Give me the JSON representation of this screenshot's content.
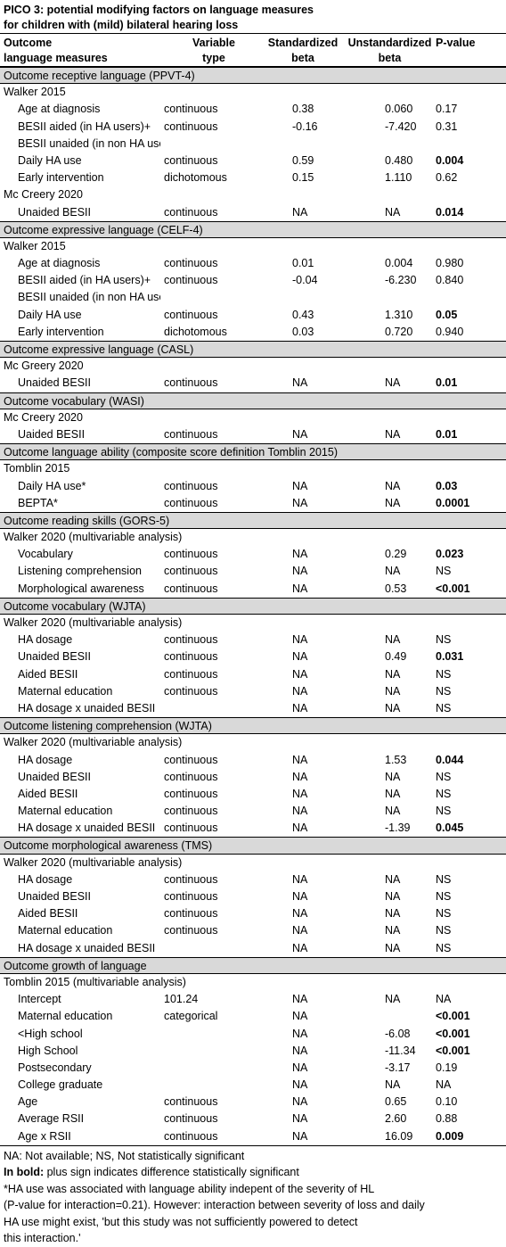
{
  "title": {
    "line1": "PICO 3: potential modifying factors on language measures",
    "line2": "for children with (mild) bilateral hearing loss"
  },
  "header": {
    "outcome_line1": "Outcome",
    "outcome_line2": "language measures",
    "type_line1": "Variable",
    "type_line2": "type",
    "std_line1": "Standardized",
    "std_line2": "beta",
    "uns_line1": "Unstandardized",
    "uns_line2": "beta",
    "p": "P-value"
  },
  "rows": [
    {
      "kind": "section",
      "text": "Outcome receptive language (PPVT-4)"
    },
    {
      "kind": "study",
      "text": "Walker 2015"
    },
    {
      "kind": "data",
      "factor": "Age at diagnosis",
      "type": "continuous",
      "std": "0.38",
      "uns": "0.060",
      "p": "0.17",
      "bold": false
    },
    {
      "kind": "data",
      "factor": "BESII aided (in HA users)+",
      "type": "continuous",
      "std": "-0.16",
      "uns": "-7.420",
      "p": "0.31",
      "bold": false
    },
    {
      "kind": "data",
      "factor": "BESII unaided (in non HA users)",
      "type": "",
      "std": "",
      "uns": "",
      "p": "",
      "bold": false
    },
    {
      "kind": "data",
      "factor": "Daily HA use",
      "type": "continuous",
      "std": "0.59",
      "uns": "0.480",
      "p": "0.004",
      "bold": true
    },
    {
      "kind": "data",
      "factor": "Early intervention",
      "type": "dichotomous",
      "std": "0.15",
      "uns": "1.110",
      "p": "0.62",
      "bold": false
    },
    {
      "kind": "study",
      "text": "Mc Creery 2020"
    },
    {
      "kind": "data",
      "factor": "Unaided BESII",
      "type": "continuous",
      "std": "NA",
      "uns": "NA",
      "p": "0.014",
      "bold": true
    },
    {
      "kind": "section",
      "text": "Outcome expressive language (CELF-4)"
    },
    {
      "kind": "study",
      "text": "Walker 2015"
    },
    {
      "kind": "data",
      "factor": "Age at diagnosis",
      "type": "continuous",
      "std": "0.01",
      "uns": "0.004",
      "p": "0.980",
      "bold": false
    },
    {
      "kind": "data",
      "factor": "BESII aided (in HA users)+",
      "type": "continuous",
      "std": "-0.04",
      "uns": "-6.230",
      "p": "0.840",
      "bold": false
    },
    {
      "kind": "data",
      "factor": "BESII unaided (in non HA users)",
      "type": "",
      "std": "",
      "uns": "",
      "p": "",
      "bold": false
    },
    {
      "kind": "data",
      "factor": "Daily HA use",
      "type": "continuous",
      "std": "0.43",
      "uns": "1.310",
      "p": "0.05",
      "bold": true
    },
    {
      "kind": "data",
      "factor": "Early intervention",
      "type": "dichotomous",
      "std": "0.03",
      "uns": "0.720",
      "p": "0.940",
      "bold": false
    },
    {
      "kind": "section",
      "text": "Outcome expressive language (CASL)"
    },
    {
      "kind": "study",
      "text": "Mc Greery 2020"
    },
    {
      "kind": "data",
      "factor": "Unaided BESII",
      "type": "continuous",
      "std": "NA",
      "uns": "NA",
      "p": "0.01",
      "bold": true
    },
    {
      "kind": "section",
      "text": "Outcome vocabulary  (WASI)"
    },
    {
      "kind": "study",
      "text": "Mc Creery 2020"
    },
    {
      "kind": "data",
      "factor": "Uaided BESII",
      "type": "continuous",
      "std": "NA",
      "uns": "NA",
      "p": "0.01",
      "bold": true
    },
    {
      "kind": "section",
      "text": "Outcome language ability (composite score definition Tomblin 2015)"
    },
    {
      "kind": "study",
      "text": "Tomblin 2015"
    },
    {
      "kind": "data",
      "factor": "Daily HA use*",
      "type": "continuous",
      "std": "NA",
      "uns": "NA",
      "p": "0.03",
      "bold": true
    },
    {
      "kind": "data",
      "factor": "BEPTA*",
      "type": "continuous",
      "std": "NA",
      "uns": "NA",
      "p": "0.0001",
      "bold": true
    },
    {
      "kind": "section",
      "text": "Outcome reading skills (GORS-5)"
    },
    {
      "kind": "study",
      "text": "Walker 2020 (multivariable analysis)"
    },
    {
      "kind": "data",
      "factor": "Vocabulary",
      "type": "continuous",
      "std": "NA",
      "uns": "0.29",
      "p": "0.023",
      "bold": true
    },
    {
      "kind": "data",
      "factor": "Listening comprehension",
      "type": "continuous",
      "std": "NA",
      "uns": "NA",
      "p": "NS",
      "bold": false
    },
    {
      "kind": "data",
      "factor": "Morphological awareness",
      "type": "continuous",
      "std": "NA",
      "uns": "0.53",
      "p": "<0.001",
      "bold": true
    },
    {
      "kind": "section",
      "text": "Outcome vocabulary  (WJTA)"
    },
    {
      "kind": "study",
      "text": "Walker 2020 (multivariable analysis)"
    },
    {
      "kind": "data",
      "factor": "HA dosage",
      "type": "continuous",
      "std": "NA",
      "uns": "NA",
      "p": "NS",
      "bold": false
    },
    {
      "kind": "data",
      "factor": "Unaided BESII",
      "type": "continuous",
      "std": "NA",
      "uns": "0.49",
      "p": "0.031",
      "bold": true
    },
    {
      "kind": "data",
      "factor": "Aided BESII",
      "type": "continuous",
      "std": "NA",
      "uns": "NA",
      "p": "NS",
      "bold": false
    },
    {
      "kind": "data",
      "factor": "Maternal education",
      "type": "continuous",
      "std": "NA",
      "uns": "NA",
      "p": "NS",
      "bold": false
    },
    {
      "kind": "data",
      "factor": "HA dosage x unaided BESII",
      "type": "",
      "std": "NA",
      "uns": "NA",
      "p": "NS",
      "bold": false
    },
    {
      "kind": "section",
      "text": "Outcome listening comprehension  (WJTA)"
    },
    {
      "kind": "study",
      "text": "Walker 2020 (multivariable analysis)"
    },
    {
      "kind": "data",
      "factor": "HA dosage",
      "type": "continuous",
      "std": "NA",
      "uns": "1.53",
      "p": "0.044",
      "bold": true
    },
    {
      "kind": "data",
      "factor": "Unaided BESII",
      "type": "continuous",
      "std": "NA",
      "uns": "NA",
      "p": "NS",
      "bold": false
    },
    {
      "kind": "data",
      "factor": "Aided BESII",
      "type": "continuous",
      "std": "NA",
      "uns": "NA",
      "p": "NS",
      "bold": false
    },
    {
      "kind": "data",
      "factor": "Maternal education",
      "type": "continuous",
      "std": "NA",
      "uns": "NA",
      "p": "NS",
      "bold": false
    },
    {
      "kind": "data",
      "factor": "HA dosage x unaided BESII",
      "type": "continuous",
      "std": "NA",
      "uns": "-1.39",
      "p": "0.045",
      "bold": true
    },
    {
      "kind": "section",
      "text": "Outcome morphological awareness (TMS)"
    },
    {
      "kind": "study",
      "text": "Walker 2020 (multivariable analysis)"
    },
    {
      "kind": "data",
      "factor": "HA dosage",
      "type": "continuous",
      "std": "NA",
      "uns": "NA",
      "p": "NS",
      "bold": false
    },
    {
      "kind": "data",
      "factor": "Unaided BESII",
      "type": "continuous",
      "std": "NA",
      "uns": "NA",
      "p": "NS",
      "bold": false
    },
    {
      "kind": "data",
      "factor": "Aided BESII",
      "type": "continuous",
      "std": "NA",
      "uns": "NA",
      "p": "NS",
      "bold": false
    },
    {
      "kind": "data",
      "factor": "Maternal education",
      "type": "continuous",
      "std": "NA",
      "uns": "NA",
      "p": "NS",
      "bold": false
    },
    {
      "kind": "data",
      "factor": "HA dosage x unaided BESII",
      "type": "",
      "std": "NA",
      "uns": "NA",
      "p": "NS",
      "bold": false
    },
    {
      "kind": "section",
      "text": "Outcome growth of language"
    },
    {
      "kind": "study",
      "text": "Tomblin 2015 (multivariable analysis)"
    },
    {
      "kind": "data",
      "factor": "Intercept",
      "type": "101.24",
      "std": "NA",
      "uns": "NA",
      "p": "NA",
      "bold": false
    },
    {
      "kind": "data",
      "factor": "Maternal education",
      "type": "categorical",
      "std": "NA",
      "uns": "",
      "p": "<0.001",
      "bold": true
    },
    {
      "kind": "data",
      "factor": "<High school",
      "type": "",
      "std": "NA",
      "uns": "-6.08",
      "p": "<0.001",
      "bold": true
    },
    {
      "kind": "data",
      "factor": "High School",
      "type": "",
      "std": "NA",
      "uns": "-11.34",
      "p": "<0.001",
      "bold": true
    },
    {
      "kind": "data",
      "factor": "Postsecondary",
      "type": "",
      "std": "NA",
      "uns": "-3.17",
      "p": "0.19",
      "bold": false
    },
    {
      "kind": "data",
      "factor": "College graduate",
      "type": "",
      "std": "NA",
      "uns": "NA",
      "p": "NA",
      "bold": false
    },
    {
      "kind": "data",
      "factor": "Age",
      "type": "continuous",
      "std": "NA",
      "uns": "0.65",
      "p": "0.10",
      "bold": false
    },
    {
      "kind": "data",
      "factor": "Average RSII",
      "type": "continuous",
      "std": "NA",
      "uns": "2.60",
      "p": "0.88",
      "bold": false
    },
    {
      "kind": "data",
      "factor": "Age x RSII",
      "type": "continuous",
      "std": "NA",
      "uns": "16.09",
      "p": "0.009",
      "bold": true
    }
  ],
  "footer": {
    "line1": "NA: Not available; NS, Not statistically significant",
    "line2_bold": "In bold:",
    "line2_rest": " plus sign indicates difference statistically significant",
    "line3": "*HA use was associated with language ability indepent of the severity of HL",
    "line4": "(P-value for interaction=0.21). However: interaction between severity of loss and daily",
    "line5": "HA use might exist, 'but this study was not sufficiently powered to detect",
    "line6": "this interaction.'"
  }
}
